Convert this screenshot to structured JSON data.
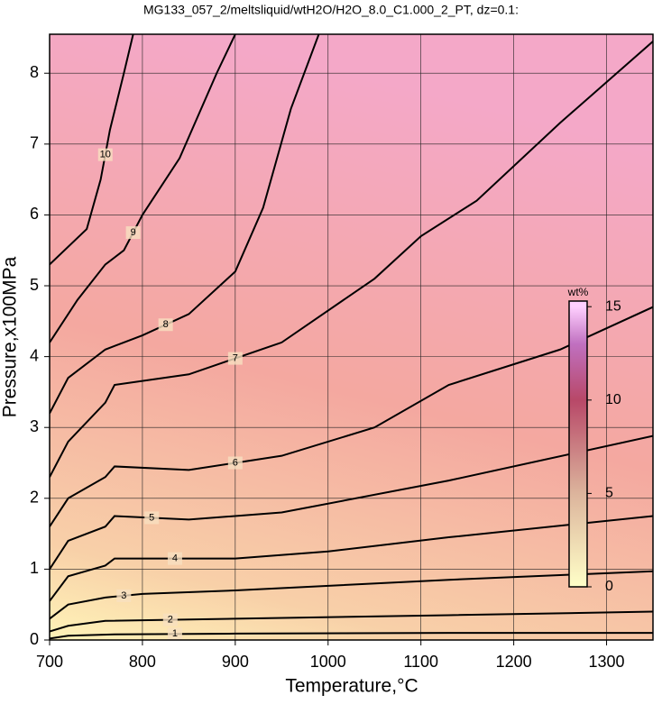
{
  "chart_data": {
    "type": "contour",
    "title": "MG133_057_2/meltsliquid/wtH2O/H2O_8.0_C1.000_2_PT, dz=0.1:",
    "x_label": "Temperature,°C",
    "y_label": "Pressure,x100MPa",
    "xlim": [
      700,
      1350
    ],
    "ylim": [
      0,
      8.55
    ],
    "xticks": [
      700,
      800,
      900,
      1000,
      1100,
      1200,
      1300
    ],
    "yticks": [
      0,
      1,
      2,
      3,
      4,
      5,
      6,
      7,
      8
    ],
    "grid": true,
    "line_color": "#000000",
    "colorbar": {
      "label": "wt%",
      "lim": [
        0,
        15.3
      ],
      "ticks": [
        0,
        5,
        10,
        15
      ],
      "colormap": [
        {
          "value": 0,
          "color": "#ffffc8"
        },
        {
          "value": 5,
          "color": "#dcb49c"
        },
        {
          "value": 10,
          "color": "#b84868"
        },
        {
          "value": 13,
          "color": "#c070c0"
        },
        {
          "value": 15,
          "color": "#ffd0ff"
        }
      ]
    },
    "contours": [
      {
        "level": 1,
        "x": [
          700,
          720,
          770,
          900,
          1130,
          1350
        ],
        "y": [
          0.02,
          0.06,
          0.08,
          0.09,
          0.1,
          0.1
        ]
      },
      {
        "level": 2,
        "x": [
          700,
          720,
          760,
          900,
          1130,
          1350
        ],
        "y": [
          0.12,
          0.2,
          0.27,
          0.3,
          0.35,
          0.4
        ]
      },
      {
        "level": 3,
        "x": [
          700,
          720,
          760,
          800,
          900,
          1130,
          1350
        ],
        "y": [
          0.3,
          0.5,
          0.6,
          0.65,
          0.7,
          0.85,
          0.97
        ]
      },
      {
        "level": 4,
        "x": [
          700,
          720,
          760,
          770,
          900,
          1000,
          1130,
          1350
        ],
        "y": [
          0.55,
          0.9,
          1.05,
          1.15,
          1.15,
          1.25,
          1.45,
          1.75
        ]
      },
      {
        "level": 5,
        "x": [
          700,
          720,
          760,
          770,
          850,
          950,
          1130,
          1350
        ],
        "y": [
          1.0,
          1.4,
          1.6,
          1.75,
          1.7,
          1.8,
          2.25,
          2.88
        ]
      },
      {
        "level": 6,
        "x": [
          700,
          720,
          760,
          770,
          850,
          950,
          1050,
          1130,
          1250,
          1350
        ],
        "y": [
          1.6,
          2.0,
          2.3,
          2.45,
          2.4,
          2.6,
          3.0,
          3.6,
          4.1,
          4.7
        ]
      },
      {
        "level": 7,
        "x": [
          700,
          720,
          760,
          770,
          850,
          950,
          1050,
          1100,
          1160,
          1250,
          1350
        ],
        "y": [
          2.3,
          2.8,
          3.35,
          3.6,
          3.75,
          4.2,
          5.1,
          5.7,
          6.2,
          7.3,
          8.45
        ]
      },
      {
        "level": 8,
        "x": [
          700,
          720,
          760,
          800,
          850,
          900,
          930,
          960,
          990
        ],
        "y": [
          3.2,
          3.7,
          4.1,
          4.3,
          4.6,
          5.2,
          6.1,
          7.5,
          8.55
        ]
      },
      {
        "level": 9,
        "x": [
          700,
          730,
          760,
          780,
          800,
          840,
          880,
          900
        ],
        "y": [
          4.2,
          4.8,
          5.3,
          5.5,
          6.0,
          6.8,
          8.0,
          8.55
        ]
      },
      {
        "level": 10,
        "x": [
          700,
          740,
          755,
          765,
          780,
          790
        ],
        "y": [
          5.3,
          5.8,
          6.5,
          7.2,
          8.0,
          8.55
        ]
      }
    ]
  }
}
